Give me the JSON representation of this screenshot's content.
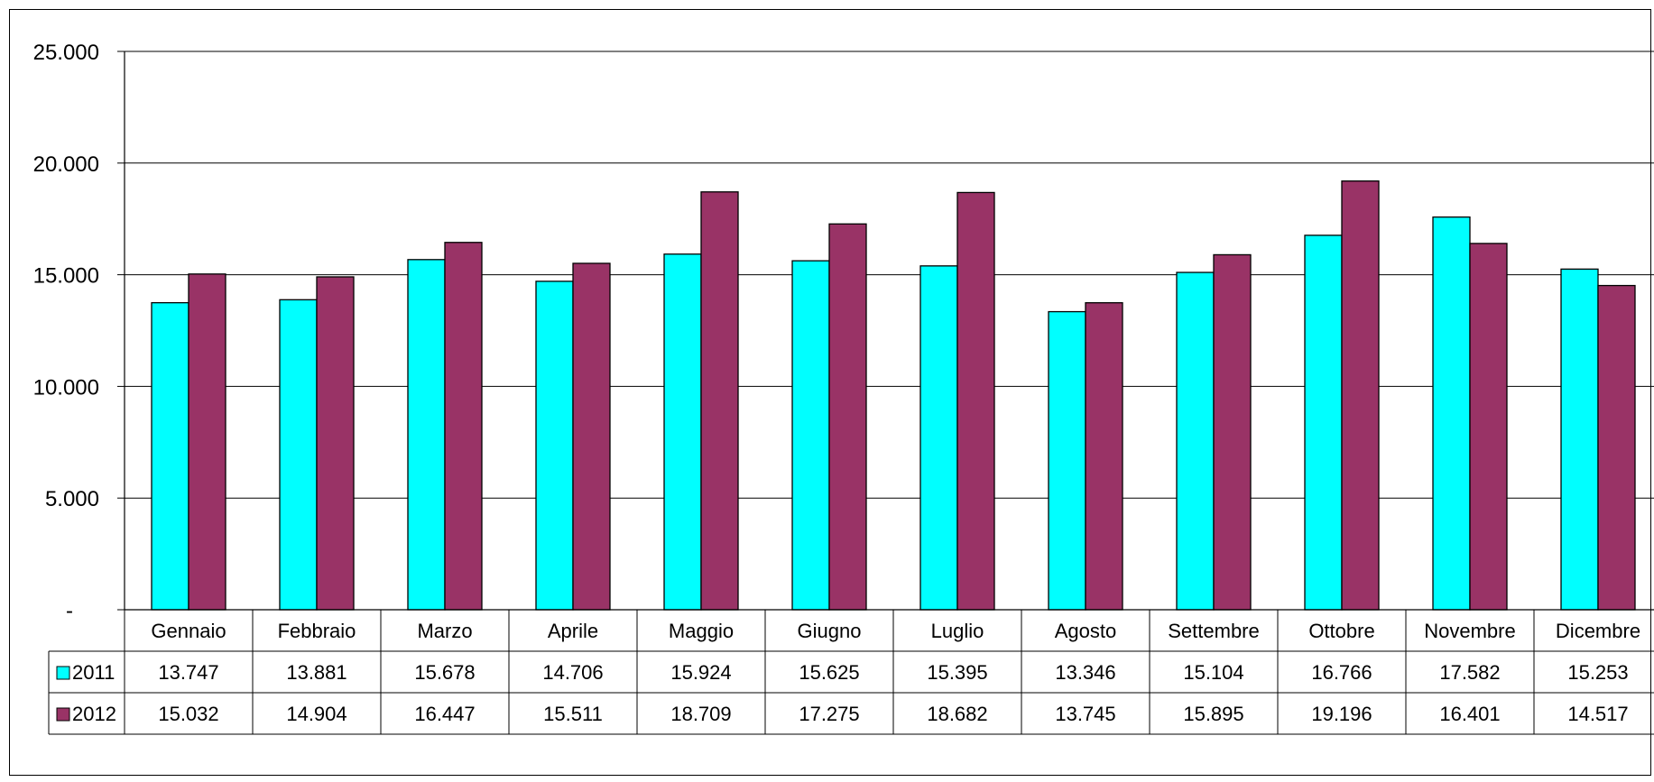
{
  "chart_data": {
    "type": "bar",
    "categories": [
      "Gennaio",
      "Febbraio",
      "Marzo",
      "Aprile",
      "Maggio",
      "Giugno",
      "Luglio",
      "Agosto",
      "Settembre",
      "Ottobre",
      "Novembre",
      "Dicembre"
    ],
    "series": [
      {
        "name": "2011",
        "color": "#00FFFF",
        "values": [
          13747,
          13881,
          15678,
          14706,
          15924,
          15625,
          15395,
          13346,
          15104,
          16766,
          17582,
          15253
        ],
        "labels": [
          "13.747",
          "13.881",
          "15.678",
          "14.706",
          "15.924",
          "15.625",
          "15.395",
          "13.346",
          "15.104",
          "16.766",
          "17.582",
          "15.253"
        ]
      },
      {
        "name": "2012",
        "color": "#993366",
        "values": [
          15032,
          14904,
          16447,
          15511,
          18709,
          17275,
          18682,
          13745,
          15895,
          19196,
          16401,
          14517
        ],
        "labels": [
          "15.032",
          "14.904",
          "16.447",
          "15.511",
          "18.709",
          "17.275",
          "18.682",
          "13.745",
          "15.895",
          "19.196",
          "16.401",
          "14.517"
        ]
      }
    ],
    "ylim": [
      0,
      25000
    ],
    "yticks": [
      0,
      5000,
      10000,
      15000,
      20000,
      25000
    ],
    "ytick_labels": [
      "-",
      "5.000",
      "10.000",
      "15.000",
      "20.000",
      "25.000"
    ],
    "grid": true,
    "legend": "data-table",
    "title": "",
    "xlabel": "",
    "ylabel": ""
  }
}
